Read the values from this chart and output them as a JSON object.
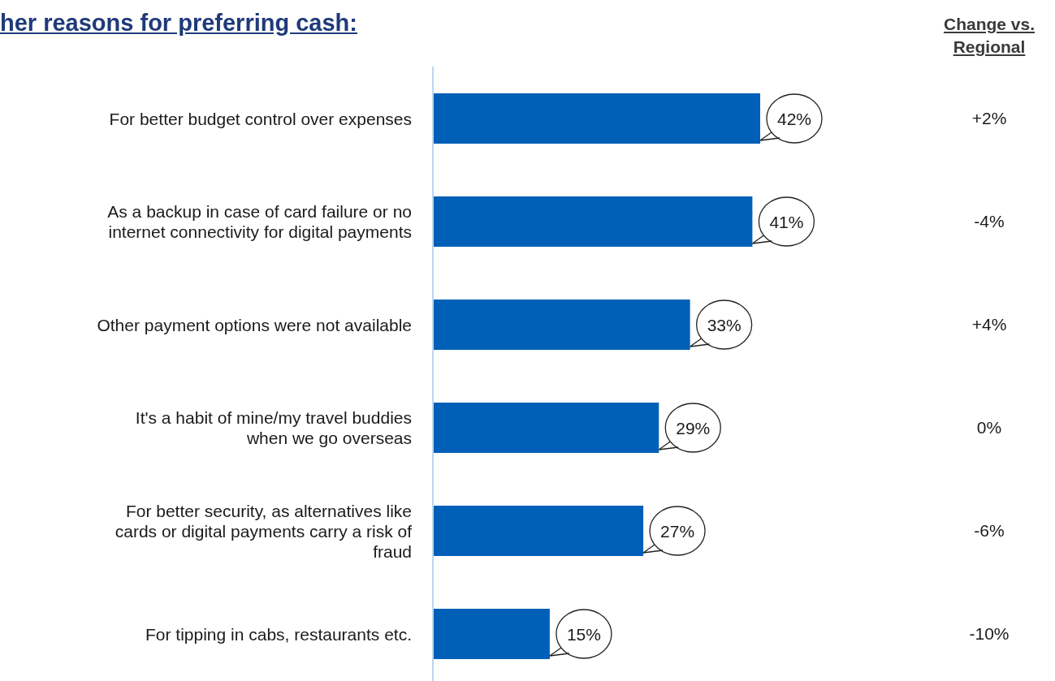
{
  "chart_data": {
    "type": "bar",
    "orientation": "horizontal",
    "title": "her reasons for preferring cash:",
    "categories": [
      "For better budget control over expenses",
      "As a backup in case of card failure or no internet connectivity for digital payments",
      "Other payment options were not available",
      "It's a habit of mine/my travel buddies when we go overseas",
      "For better security, as alternatives like cards or digital payments carry a risk of fraud",
      "For tipping in cabs, restaurants etc."
    ],
    "series": [
      {
        "color": "#0060b8",
        "values": [
          42,
          41,
          33,
          29,
          27,
          15
        ],
        "value_labels": [
          "42%",
          "41%",
          "33%",
          "29%",
          "27%",
          "15%"
        ]
      }
    ],
    "tick_labels": "y",
    "annotations": [
      "Change vs. Regional",
      "+2%",
      "-4%",
      "+4%",
      "0%",
      "-6%",
      "-10%"
    ]
  }
}
